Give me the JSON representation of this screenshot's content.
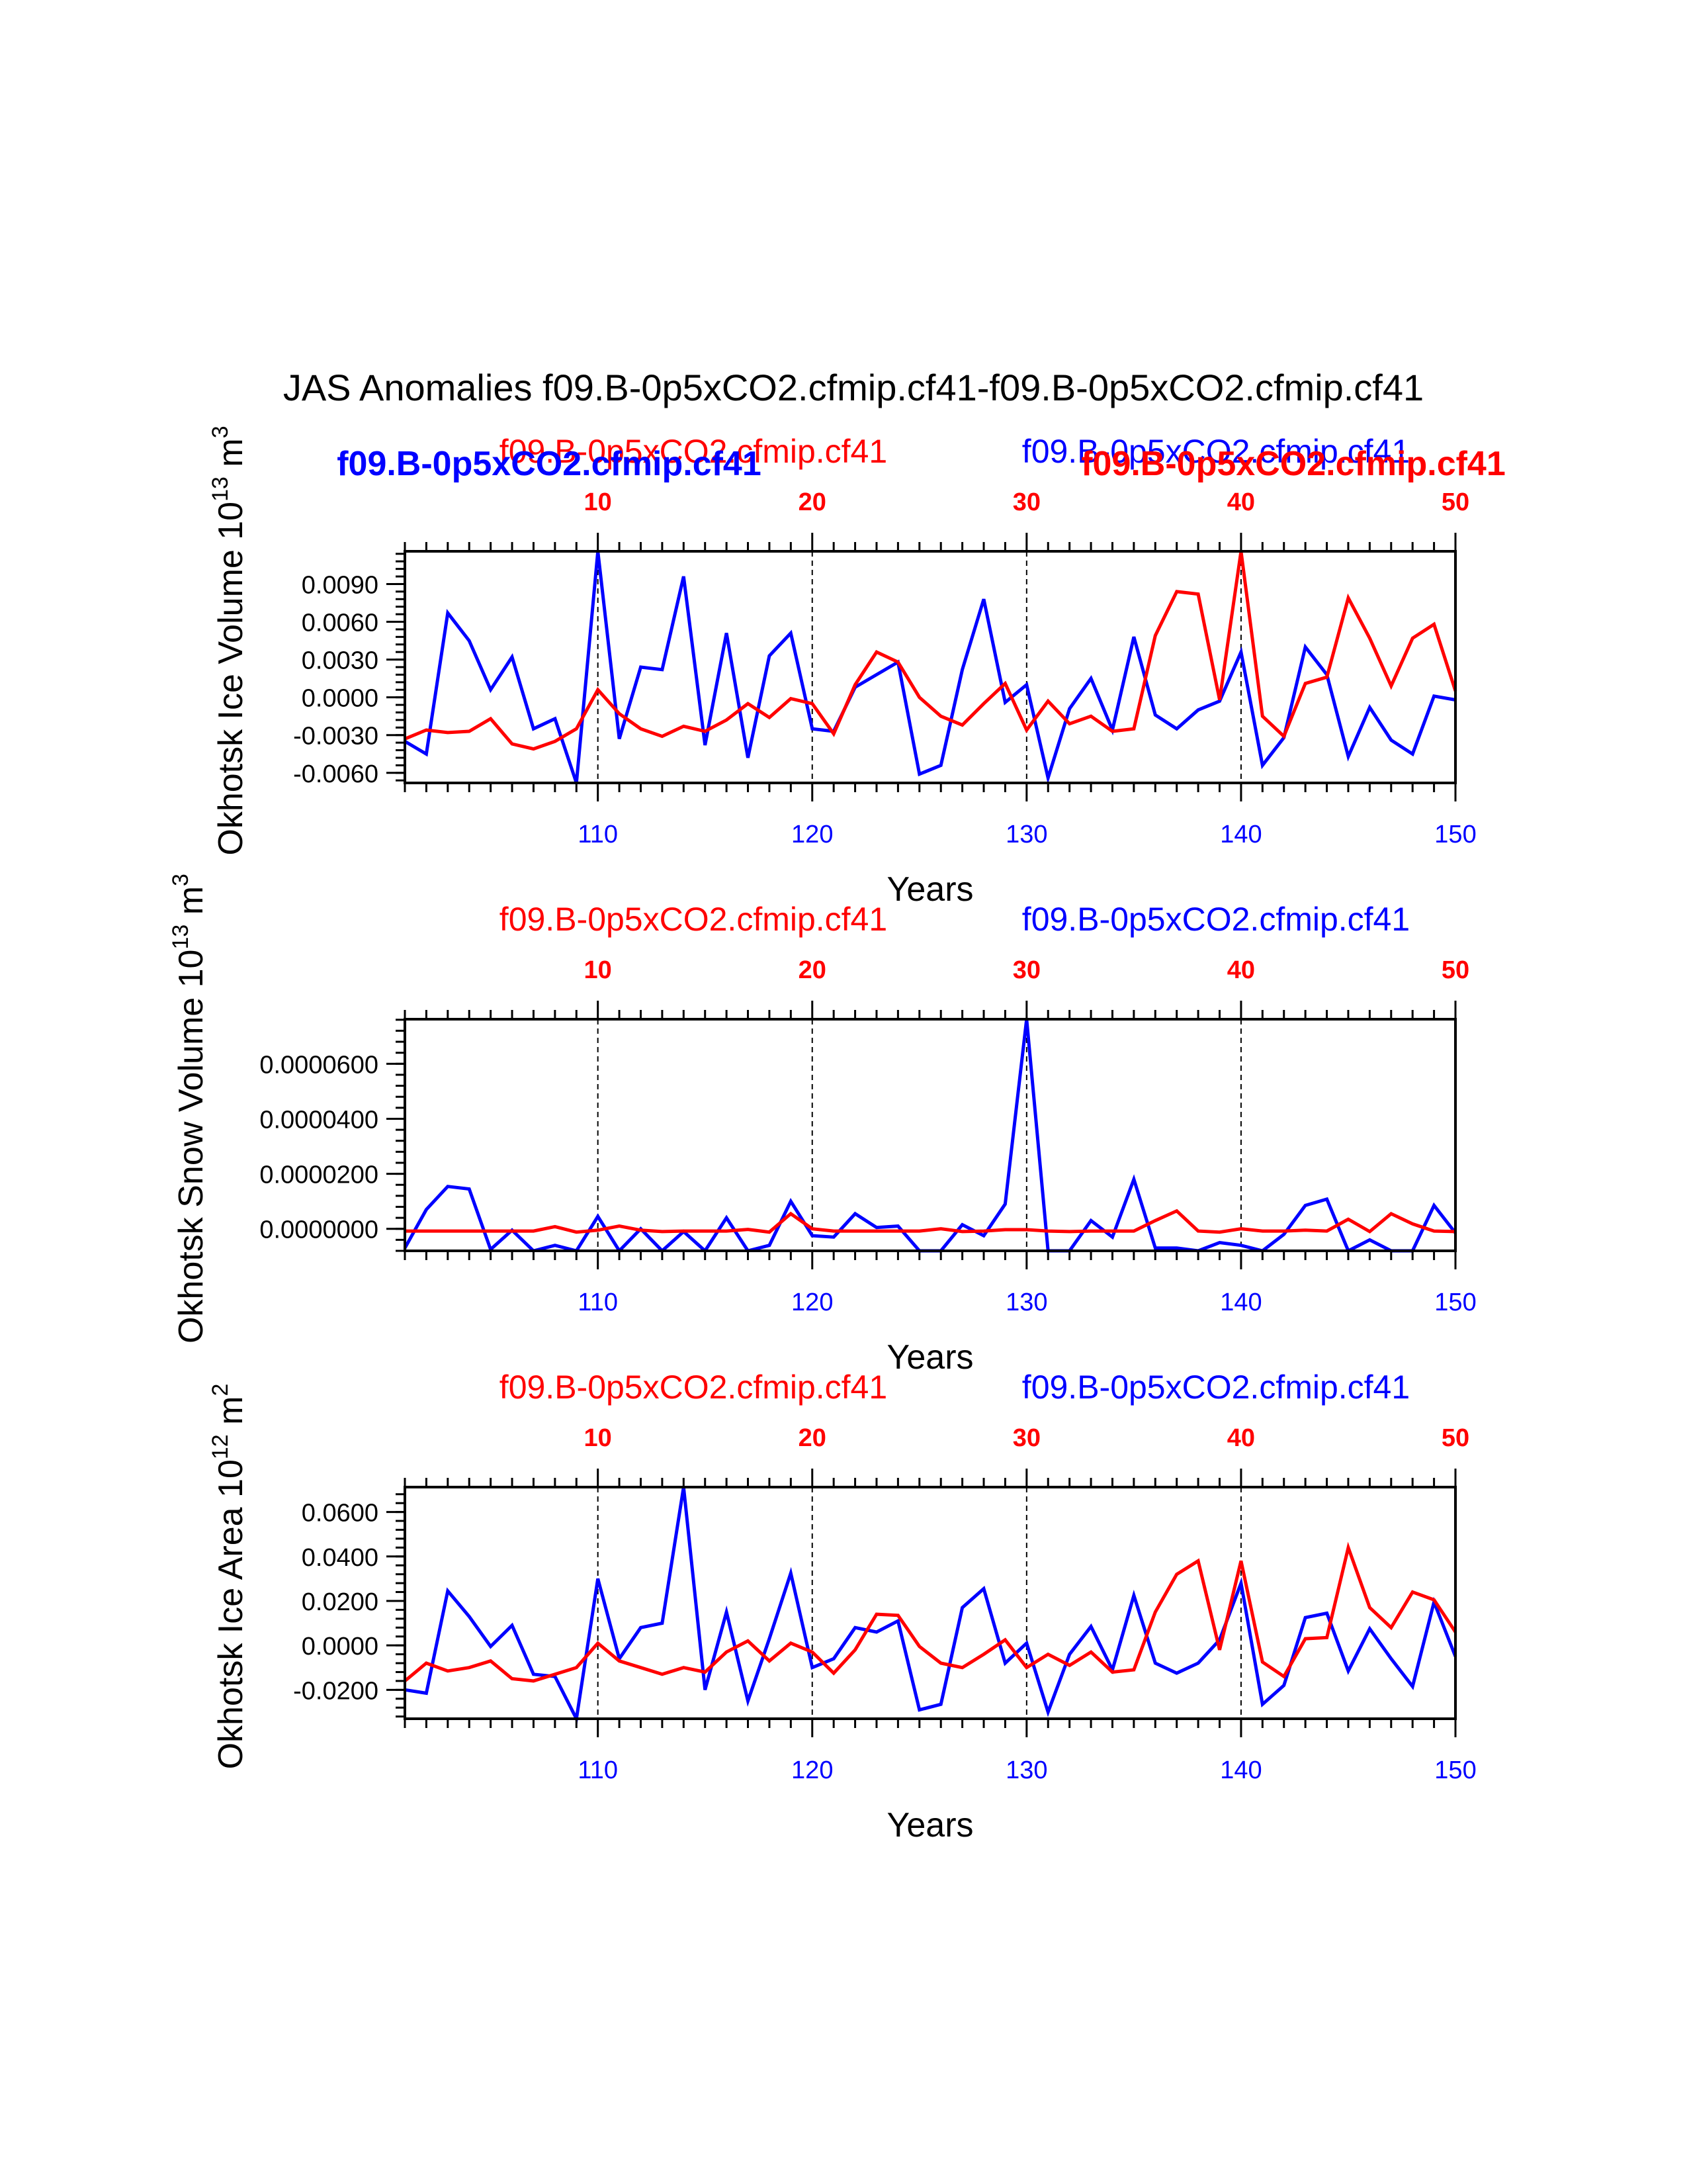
{
  "title": "JAS Anomalies f09.B-0p5xCO2.cfmip.cf41-f09.B-0p5xCO2.cfmip.cf41",
  "legend": {
    "red_label": "f09.B-0p5xCO2.cfmip.cf41",
    "blue_label": "f09.B-0p5xCO2.cfmip.cf41",
    "red_color": "#ff0000",
    "blue_color": "#0000ff"
  },
  "colors": {
    "red": "#ff0000",
    "blue": "#0000ff",
    "axis": "#000000"
  },
  "chart_data": [
    {
      "type": "line",
      "title": "",
      "xlabel": "Years",
      "ylabel": "Okhotsk Ice Volume 10",
      "ylabel_sup_exp": "13",
      "ylabel_unit": " m",
      "ylabel_sup_unit": "3",
      "xlim": [
        101,
        150
      ],
      "ylim": [
        -0.0068,
        0.0116
      ],
      "yticks": [
        -0.006,
        -0.003,
        0.0,
        0.003,
        0.006,
        0.009
      ],
      "ytick_labels": [
        "-0.0060",
        "-0.0030",
        "0.0000",
        "0.0030",
        "0.0060",
        "0.0090"
      ],
      "yminor": 0.0006,
      "xticks_bottom": [
        110,
        120,
        130,
        140,
        150
      ],
      "xticks_top": [
        10,
        20,
        30,
        40,
        50
      ],
      "top_series_name": "f09.B-0p5xCO2.cfmip.cf41",
      "top_series_name_blue": "f09.B-0p5xCO2.cfmip.cf41",
      "series": [
        {
          "name": "f09.B-0p5xCO2.cfmip.cf41",
          "color": "#0000ff",
          "x": [
            101,
            102,
            103,
            104,
            105,
            106,
            107,
            108,
            109,
            110,
            111,
            112,
            113,
            114,
            115,
            116,
            117,
            118,
            119,
            120,
            121,
            122,
            123,
            124,
            125,
            126,
            127,
            128,
            129,
            130,
            131,
            132,
            133,
            134,
            135,
            136,
            137,
            138,
            139,
            140,
            141,
            142,
            143,
            144,
            145,
            146,
            147,
            148,
            149,
            150
          ],
          "values": [
            -0.0035,
            -0.0045,
            0.0067,
            0.0045,
            0.0006,
            0.0032,
            -0.0025,
            -0.0017,
            -0.0068,
            0.0116,
            -0.0033,
            0.0024,
            0.0022,
            0.0096,
            -0.0038,
            0.0051,
            -0.0048,
            0.0033,
            0.0051,
            -0.0025,
            -0.0027,
            0.0008,
            0.0018,
            0.0028,
            -0.0061,
            -0.0054,
            0.0022,
            0.0078,
            -0.0004,
            0.001,
            -0.0064,
            -0.0009,
            0.0015,
            -0.0026,
            0.0048,
            -0.0014,
            -0.0025,
            -0.001,
            -0.0003,
            0.0036,
            -0.0054,
            -0.0032,
            0.004,
            0.0018,
            -0.0047,
            -0.0008,
            -0.0034,
            -0.0045,
            0.0001,
            -0.0002
          ]
        },
        {
          "name": "f09.B-0p5xCO2.cfmip.cf41",
          "color": "#ff0000",
          "x": [
            101,
            102,
            103,
            104,
            105,
            106,
            107,
            108,
            109,
            110,
            111,
            112,
            113,
            114,
            115,
            116,
            117,
            118,
            119,
            120,
            121,
            122,
            123,
            124,
            125,
            126,
            127,
            128,
            129,
            130,
            131,
            132,
            133,
            134,
            135,
            136,
            137,
            138,
            139,
            140,
            141,
            142,
            143,
            144,
            145,
            146,
            147,
            148,
            149,
            150
          ],
          "values": [
            -0.0033,
            -0.0026,
            -0.0028,
            -0.0027,
            -0.0017,
            -0.0037,
            -0.0041,
            -0.0035,
            -0.0025,
            0.0006,
            -0.0013,
            -0.0025,
            -0.0031,
            -0.0023,
            -0.0027,
            -0.0018,
            -0.0005,
            -0.0016,
            -0.0001,
            -0.0005,
            -0.0029,
            0.001,
            0.0036,
            0.0028,
            0.0,
            -0.0015,
            -0.0022,
            -0.0005,
            0.0011,
            -0.0026,
            -0.0003,
            -0.0021,
            -0.0015,
            -0.0027,
            -0.0025,
            0.0049,
            0.0084,
            0.0082,
            -0.0002,
            0.0116,
            -0.0015,
            -0.0031,
            0.0011,
            0.0016,
            0.0079,
            0.0047,
            0.0009,
            0.0047,
            0.0058,
            0.0005
          ]
        }
      ]
    },
    {
      "type": "line",
      "title": "",
      "xlabel": "Years",
      "ylabel": "Okhotsk Snow Volume 10",
      "ylabel_sup_exp": "13",
      "ylabel_unit": " m",
      "ylabel_sup_unit": "3",
      "xlim": [
        101,
        150
      ],
      "ylim": [
        -8e-06,
        7.62e-05
      ],
      "yticks": [
        0.0,
        2e-05,
        4e-05,
        6e-05
      ],
      "ytick_labels": [
        "0.0000000",
        "0.0000200",
        "0.0000400",
        "0.0000600"
      ],
      "yminor": 4e-06,
      "xticks_bottom": [
        110,
        120,
        130,
        140,
        150
      ],
      "xticks_top": [
        10,
        20,
        30,
        40,
        50
      ],
      "top_series_name": "f09.B-0p5xCO2.cfmip.cf41",
      "top_series_name_blue": "f09.B-0p5xCO2.cfmip.cf41",
      "series": [
        {
          "name": "f09.B-0p5xCO2.cfmip.cf41",
          "color": "#0000ff",
          "x": [
            101,
            102,
            103,
            104,
            105,
            106,
            107,
            108,
            109,
            110,
            111,
            112,
            113,
            114,
            115,
            116,
            117,
            118,
            119,
            120,
            121,
            122,
            123,
            124,
            125,
            126,
            127,
            128,
            129,
            130,
            131,
            132,
            133,
            134,
            135,
            136,
            137,
            138,
            139,
            140,
            141,
            142,
            143,
            144,
            145,
            146,
            147,
            148,
            149,
            150
          ],
          "values": [
            -7e-06,
            7e-06,
            1.54e-05,
            1.45e-05,
            -7.5e-06,
            -5e-07,
            -8e-06,
            -6e-06,
            -8e-06,
            4.5e-06,
            -8e-06,
            0.0,
            -8e-06,
            -1e-06,
            -8e-06,
            4e-06,
            -8e-06,
            -6e-06,
            1e-05,
            -2.5e-06,
            -3e-06,
            5.5e-06,
            5e-07,
            1e-06,
            -8e-06,
            -8e-06,
            1.5e-06,
            -2.5e-06,
            9e-06,
            7.62e-05,
            -8e-06,
            -8e-06,
            3e-06,
            -3e-06,
            1.8e-05,
            -7e-06,
            -7e-06,
            -8e-06,
            -5e-06,
            -6e-06,
            -8e-06,
            -2e-06,
            8.5e-06,
            1.08e-05,
            -8e-06,
            -4e-06,
            -8e-06,
            -8e-06,
            8.5e-06,
            -1.5e-06
          ]
        },
        {
          "name": "f09.B-0p5xCO2.cfmip.cf41",
          "color": "#ff0000",
          "x": [
            101,
            102,
            103,
            104,
            105,
            106,
            107,
            108,
            109,
            110,
            111,
            112,
            113,
            114,
            115,
            116,
            117,
            118,
            119,
            120,
            121,
            122,
            123,
            124,
            125,
            126,
            127,
            128,
            129,
            130,
            131,
            132,
            133,
            134,
            135,
            136,
            137,
            138,
            139,
            140,
            141,
            142,
            143,
            144,
            145,
            146,
            147,
            148,
            149,
            150
          ],
          "values": [
            -8e-07,
            -8e-07,
            -8e-07,
            -8e-07,
            -8e-07,
            -8e-07,
            -8e-07,
            8e-07,
            -1.2e-06,
            -5e-07,
            1e-06,
            -5e-07,
            -1e-06,
            -8e-07,
            -8e-07,
            -8e-07,
            -2e-07,
            -1.2e-06,
            5.5e-06,
            0.0,
            -8e-07,
            -8e-07,
            -8e-07,
            -8e-07,
            -8e-07,
            0.0,
            -1e-06,
            -8e-07,
            -3e-07,
            -3e-07,
            -8e-07,
            -1e-06,
            -8e-07,
            -8e-07,
            -8e-07,
            3e-06,
            6.5e-06,
            -8e-07,
            -1.2e-06,
            0.0,
            -8e-07,
            -8e-07,
            -5e-07,
            -8e-07,
            3.5e-06,
            -1e-06,
            5.5e-06,
            1.8e-06,
            -8e-07,
            -1e-06
          ]
        }
      ]
    },
    {
      "type": "line",
      "title": "",
      "xlabel": "Years",
      "ylabel": "Okhotsk Ice Area 10",
      "ylabel_sup_exp": "12",
      "ylabel_unit": " m",
      "ylabel_sup_unit": "2",
      "xlim": [
        101,
        150
      ],
      "ylim": [
        -0.033,
        0.0712
      ],
      "yticks": [
        -0.02,
        0.0,
        0.02,
        0.04,
        0.06
      ],
      "ytick_labels": [
        "-0.0200",
        "0.0000",
        "0.0200",
        "0.0400",
        "0.0600"
      ],
      "yminor": 0.004,
      "xticks_bottom": [
        110,
        120,
        130,
        140,
        150
      ],
      "xticks_top": [
        10,
        20,
        30,
        40,
        50
      ],
      "top_series_name": "f09.B-0p5xCO2.cfmip.cf41",
      "top_series_name_blue": "f09.B-0p5xCO2.cfmip.cf41",
      "series": [
        {
          "name": "f09.B-0p5xCO2.cfmip.cf41",
          "color": "#0000ff",
          "x": [
            101,
            102,
            103,
            104,
            105,
            106,
            107,
            108,
            109,
            110,
            111,
            112,
            113,
            114,
            115,
            116,
            117,
            118,
            119,
            120,
            121,
            122,
            123,
            124,
            125,
            126,
            127,
            128,
            129,
            130,
            131,
            132,
            133,
            134,
            135,
            136,
            137,
            138,
            139,
            140,
            141,
            142,
            143,
            144,
            145,
            146,
            147,
            148,
            149,
            150
          ],
          "values": [
            -0.02,
            -0.0215,
            0.0245,
            0.013,
            -0.0005,
            0.009,
            -0.013,
            -0.014,
            -0.033,
            0.03,
            -0.006,
            0.008,
            0.01,
            0.0712,
            -0.02,
            0.015,
            -0.025,
            0.003,
            0.0325,
            -0.01,
            -0.006,
            0.008,
            0.006,
            0.011,
            -0.029,
            -0.0265,
            0.017,
            0.0255,
            -0.008,
            0.001,
            -0.03,
            -0.004,
            0.0085,
            -0.011,
            0.0225,
            -0.008,
            -0.0125,
            -0.008,
            0.0025,
            0.028,
            -0.0265,
            -0.018,
            0.0125,
            0.0145,
            -0.0115,
            0.0075,
            -0.006,
            -0.0185,
            0.0195,
            -0.005
          ]
        },
        {
          "name": "f09.B-0p5xCO2.cfmip.cf41",
          "color": "#ff0000",
          "x": [
            101,
            102,
            103,
            104,
            105,
            106,
            107,
            108,
            109,
            110,
            111,
            112,
            113,
            114,
            115,
            116,
            117,
            118,
            119,
            120,
            121,
            122,
            123,
            124,
            125,
            126,
            127,
            128,
            129,
            130,
            131,
            132,
            133,
            134,
            135,
            136,
            137,
            138,
            139,
            140,
            141,
            142,
            143,
            144,
            145,
            146,
            147,
            148,
            149,
            150
          ],
          "values": [
            -0.016,
            -0.008,
            -0.0115,
            -0.01,
            -0.007,
            -0.015,
            -0.016,
            -0.013,
            -0.01,
            0.001,
            -0.007,
            -0.01,
            -0.013,
            -0.01,
            -0.012,
            -0.003,
            0.002,
            -0.007,
            0.001,
            -0.003,
            -0.0125,
            -0.002,
            0.014,
            0.0135,
            -0.0005,
            -0.008,
            -0.01,
            -0.004,
            0.0025,
            -0.01,
            -0.004,
            -0.009,
            -0.003,
            -0.012,
            -0.011,
            0.015,
            0.032,
            0.038,
            -0.002,
            0.038,
            -0.0075,
            -0.014,
            0.003,
            0.0035,
            0.044,
            0.017,
            0.008,
            0.024,
            0.0205,
            0.006
          ]
        }
      ]
    }
  ]
}
